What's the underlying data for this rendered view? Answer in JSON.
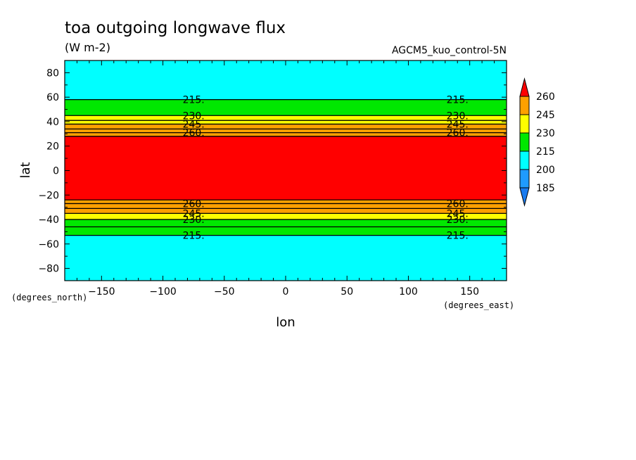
{
  "chart_data": {
    "type": "heatmap",
    "title": "toa outgoing longwave flux",
    "units": "(W m-2)",
    "run_label": "AGCM5_kuo_control-5N",
    "xlabel": "lon",
    "ylabel": "lat",
    "x_units_label": "(degrees_east)",
    "y_units_label": "(degrees_north)",
    "xlim": [
      -180,
      180
    ],
    "ylim": [
      -90,
      90
    ],
    "x_ticks": [
      -150,
      -100,
      -50,
      0,
      50,
      100,
      150
    ],
    "y_ticks": [
      80,
      60,
      40,
      20,
      0,
      -20,
      -40,
      -60,
      -80
    ],
    "contour_levels": [
      185,
      200,
      215,
      230,
      245,
      260
    ],
    "colors": {
      "lt185": "#1a7cf0",
      "185_200": "#1f9bff",
      "200_215": "#00ffff",
      "215_230": "#00e800",
      "230_245": "#ffff00",
      "245_260": "#ffa000",
      "gt260": "#ff0000"
    },
    "bands": [
      {
        "lat_min": -90,
        "lat_max": -53,
        "color": "#00ffff"
      },
      {
        "lat_min": -53,
        "lat_max": -40,
        "color": "#00e800"
      },
      {
        "lat_min": -40,
        "lat_max": -35,
        "color": "#ffff00"
      },
      {
        "lat_min": -35,
        "lat_max": -24,
        "color": "#ffa000"
      },
      {
        "lat_min": -24,
        "lat_max": 28,
        "color": "#ff0000"
      },
      {
        "lat_min": 28,
        "lat_max": 38,
        "color": "#ffa000"
      },
      {
        "lat_min": 38,
        "lat_max": 45,
        "color": "#ffff00"
      },
      {
        "lat_min": 45,
        "lat_max": 58,
        "color": "#00e800"
      },
      {
        "lat_min": 58,
        "lat_max": 90,
        "color": "#00ffff"
      }
    ],
    "contour_lines": [
      {
        "level": 215,
        "lat": 58,
        "label": "215."
      },
      {
        "level": 230,
        "lat": 45,
        "label": "230."
      },
      {
        "lat": 41
      },
      {
        "level": 245,
        "lat": 38,
        "label": "245."
      },
      {
        "lat": 34
      },
      {
        "level": 260,
        "lat": 31,
        "label": "260."
      },
      {
        "lat": 28
      },
      {
        "lat": -24
      },
      {
        "level": 260,
        "lat": -27,
        "label": "260."
      },
      {
        "lat": -31
      },
      {
        "level": 245,
        "lat": -35,
        "label": "245."
      },
      {
        "level": 230,
        "lat": -40,
        "label": "230."
      },
      {
        "lat": -46
      },
      {
        "level": 215,
        "lat": -53,
        "label": "215."
      }
    ],
    "label_longitudes": [
      -75,
      140
    ],
    "colorbar": {
      "labels": [
        "260",
        "245",
        "230",
        "215",
        "200",
        "185"
      ],
      "segments": [
        "#ff0000",
        "#ffa000",
        "#ffff00",
        "#00e800",
        "#00ffff",
        "#1f9bff",
        "#1a7cf0"
      ]
    },
    "grid": false
  }
}
